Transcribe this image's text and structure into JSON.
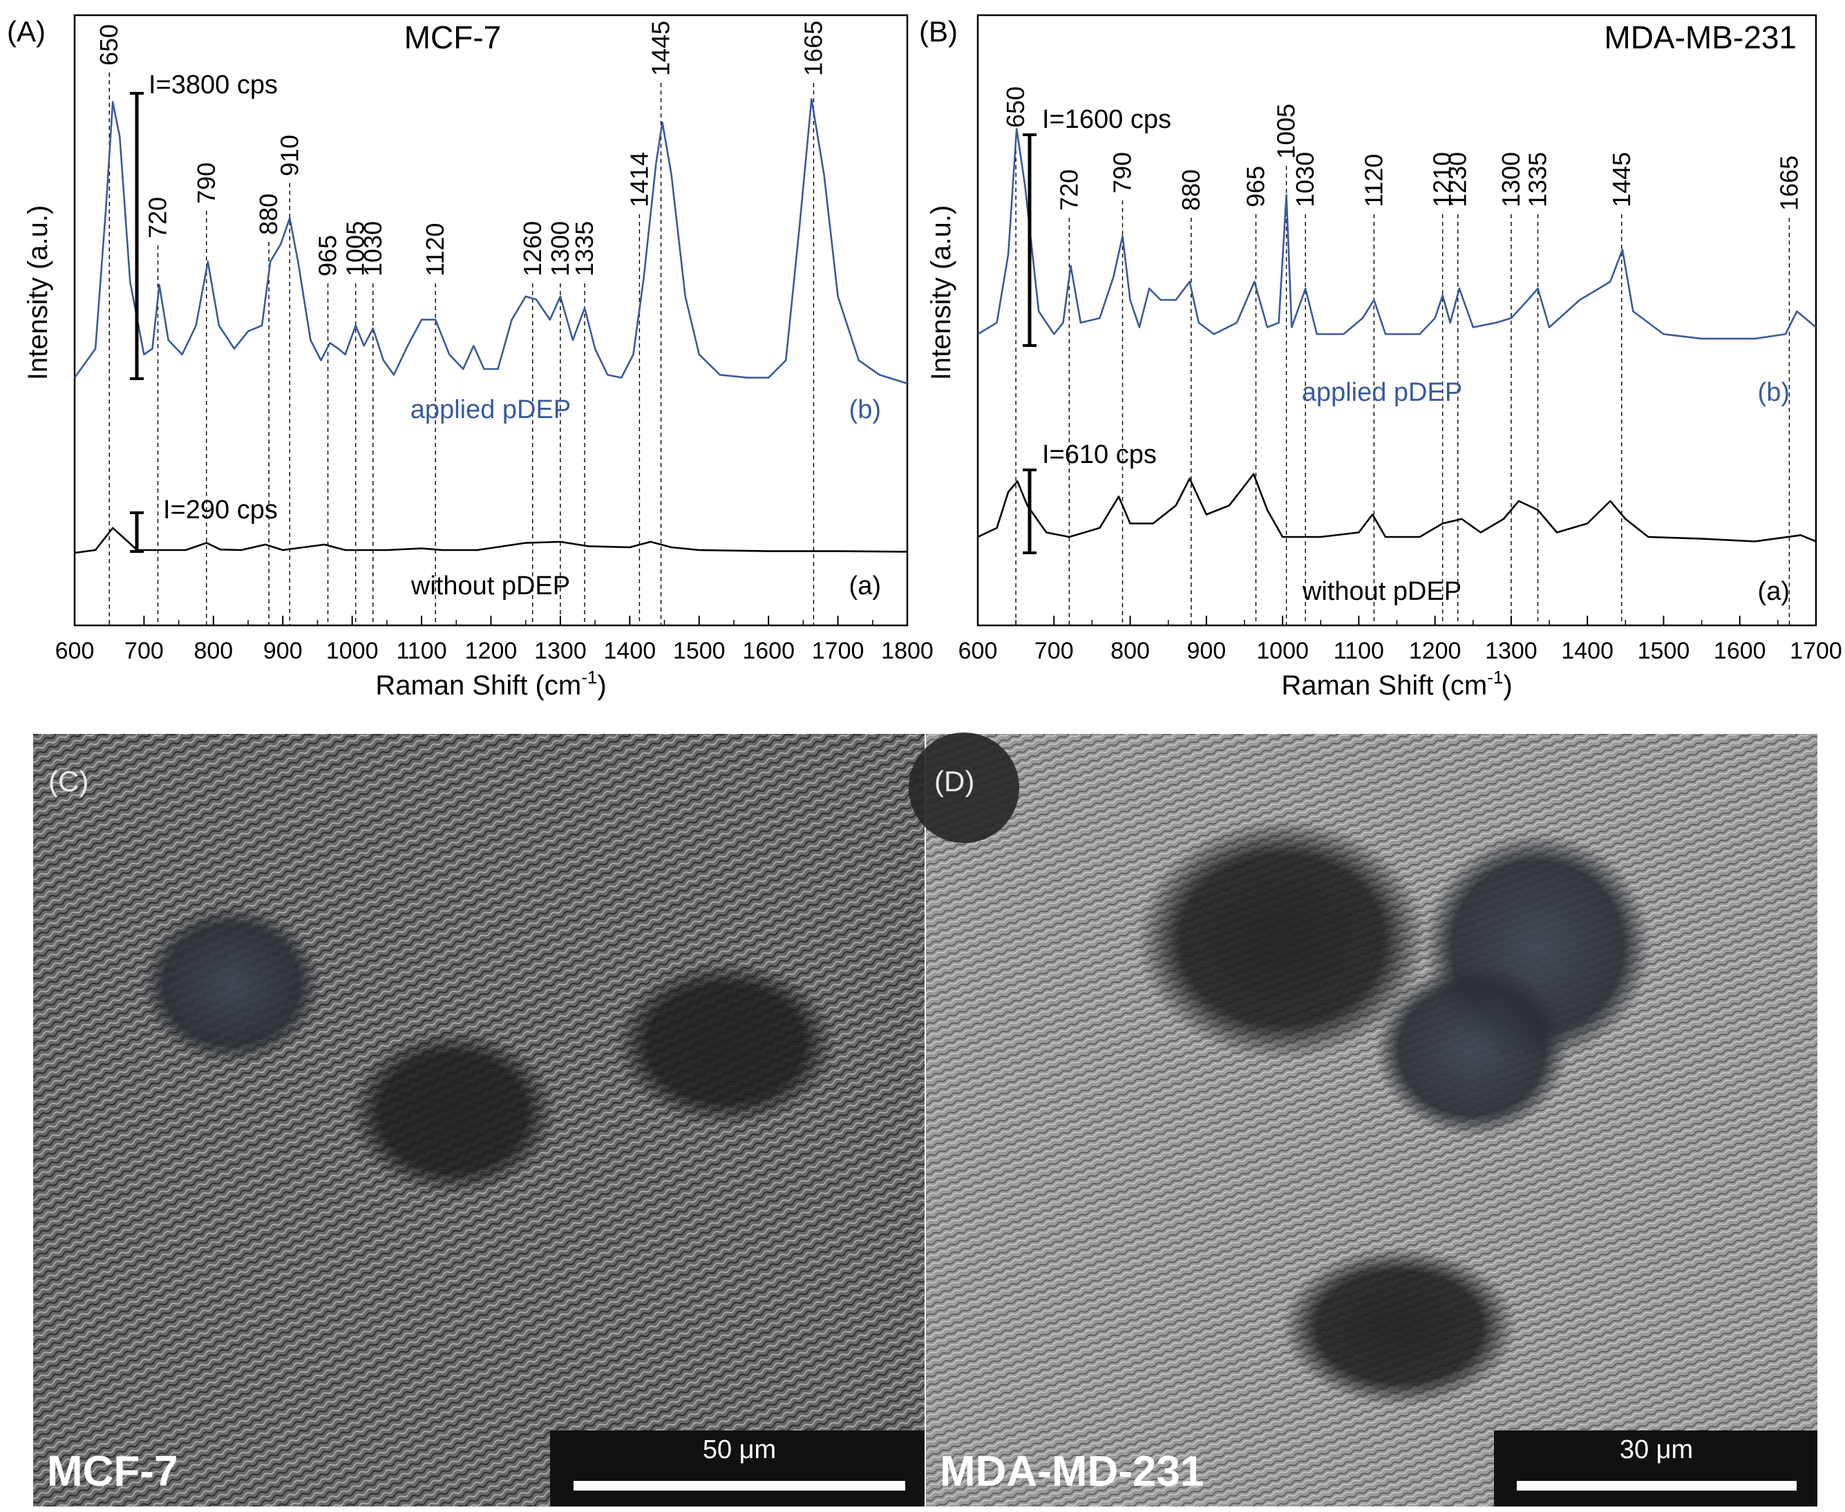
{
  "chart_data": [
    {
      "panel": "(A)",
      "type": "line",
      "title": "MCF-7",
      "xlabel": "Raman Shift (cm",
      "xlabel_sup": "-1",
      "xlabel_close": ")",
      "ylabel": "Intensity (a.u.)",
      "xlim": [
        600,
        1800
      ],
      "xticks": [
        600,
        700,
        800,
        900,
        1000,
        1100,
        1200,
        1300,
        1400,
        1500,
        1600,
        1700,
        1800
      ],
      "peak_labels": [
        "650",
        "720",
        "790",
        "880",
        "910",
        "965",
        "1005",
        "1030",
        "1120",
        "1260",
        "1300",
        "1335",
        "1414",
        "1445",
        "1665"
      ],
      "series": [
        {
          "name": "applied pDEP",
          "tag": "(b)",
          "color": "#3a5a9e",
          "scale_label": "I=3800 cps",
          "points": [
            [
              600,
              0.02
            ],
            [
              630,
              0.12
            ],
            [
              645,
              0.6
            ],
            [
              655,
              0.97
            ],
            [
              665,
              0.85
            ],
            [
              680,
              0.35
            ],
            [
              700,
              0.1
            ],
            [
              712,
              0.12
            ],
            [
              722,
              0.34
            ],
            [
              735,
              0.15
            ],
            [
              755,
              0.1
            ],
            [
              775,
              0.2
            ],
            [
              792,
              0.42
            ],
            [
              808,
              0.2
            ],
            [
              830,
              0.12
            ],
            [
              850,
              0.18
            ],
            [
              870,
              0.2
            ],
            [
              882,
              0.42
            ],
            [
              897,
              0.48
            ],
            [
              910,
              0.57
            ],
            [
              922,
              0.42
            ],
            [
              940,
              0.15
            ],
            [
              955,
              0.08
            ],
            [
              968,
              0.14
            ],
            [
              980,
              0.12
            ],
            [
              990,
              0.1
            ],
            [
              1005,
              0.2
            ],
            [
              1017,
              0.13
            ],
            [
              1030,
              0.19
            ],
            [
              1045,
              0.08
            ],
            [
              1060,
              0.03
            ],
            [
              1080,
              0.13
            ],
            [
              1100,
              0.22
            ],
            [
              1120,
              0.22
            ],
            [
              1140,
              0.1
            ],
            [
              1160,
              0.05
            ],
            [
              1175,
              0.13
            ],
            [
              1190,
              0.05
            ],
            [
              1210,
              0.05
            ],
            [
              1230,
              0.22
            ],
            [
              1250,
              0.3
            ],
            [
              1265,
              0.29
            ],
            [
              1285,
              0.22
            ],
            [
              1300,
              0.3
            ],
            [
              1318,
              0.15
            ],
            [
              1335,
              0.26
            ],
            [
              1350,
              0.12
            ],
            [
              1368,
              0.03
            ],
            [
              1388,
              0.02
            ],
            [
              1405,
              0.1
            ],
            [
              1420,
              0.36
            ],
            [
              1438,
              0.76
            ],
            [
              1447,
              0.9
            ],
            [
              1460,
              0.72
            ],
            [
              1480,
              0.3
            ],
            [
              1500,
              0.1
            ],
            [
              1530,
              0.03
            ],
            [
              1570,
              0.02
            ],
            [
              1600,
              0.02
            ],
            [
              1625,
              0.08
            ],
            [
              1645,
              0.55
            ],
            [
              1662,
              0.98
            ],
            [
              1680,
              0.72
            ],
            [
              1700,
              0.3
            ],
            [
              1730,
              0.08
            ],
            [
              1760,
              0.03
            ],
            [
              1800,
              0.0
            ]
          ]
        },
        {
          "name": "without pDEP",
          "tag": "(a)",
          "color": "#000000",
          "scale_label": "I=290 cps",
          "points": [
            [
              600,
              0.0
            ],
            [
              630,
              0.05
            ],
            [
              655,
              0.45
            ],
            [
              670,
              0.28
            ],
            [
              690,
              0.05
            ],
            [
              720,
              0.05
            ],
            [
              760,
              0.05
            ],
            [
              790,
              0.18
            ],
            [
              810,
              0.06
            ],
            [
              840,
              0.05
            ],
            [
              875,
              0.15
            ],
            [
              900,
              0.05
            ],
            [
              960,
              0.15
            ],
            [
              990,
              0.05
            ],
            [
              1050,
              0.05
            ],
            [
              1100,
              0.08
            ],
            [
              1130,
              0.05
            ],
            [
              1180,
              0.05
            ],
            [
              1250,
              0.18
            ],
            [
              1300,
              0.2
            ],
            [
              1340,
              0.12
            ],
            [
              1400,
              0.1
            ],
            [
              1430,
              0.2
            ],
            [
              1460,
              0.1
            ],
            [
              1500,
              0.05
            ],
            [
              1600,
              0.03
            ],
            [
              1700,
              0.03
            ],
            [
              1800,
              0.02
            ]
          ]
        }
      ],
      "scale_bar_um": "50 μm",
      "micrograph_label": "MCF-7",
      "micrograph_panel": "(C)"
    },
    {
      "panel": "(B)",
      "type": "line",
      "title": "MDA-MB-231",
      "xlabel": "Raman Shift (cm",
      "xlabel_sup": "-1",
      "xlabel_close": ")",
      "ylabel": "Intensity (a.u.)",
      "xlim": [
        600,
        1700
      ],
      "xticks": [
        600,
        700,
        800,
        900,
        1000,
        1100,
        1200,
        1300,
        1400,
        1500,
        1600,
        1700
      ],
      "peak_labels": [
        "650",
        "720",
        "790",
        "880",
        "965",
        "1005",
        "1030",
        "1120",
        "1210",
        "1230",
        "1300",
        "1335",
        "1445",
        "1665"
      ],
      "series": [
        {
          "name": "applied pDEP",
          "tag": "(b)",
          "color": "#3a5a9e",
          "scale_label": "I=1600 cps",
          "points": [
            [
              600,
              0.05
            ],
            [
              625,
              0.1
            ],
            [
              640,
              0.4
            ],
            [
              651,
              0.95
            ],
            [
              662,
              0.7
            ],
            [
              680,
              0.15
            ],
            [
              700,
              0.05
            ],
            [
              712,
              0.1
            ],
            [
              722,
              0.35
            ],
            [
              735,
              0.1
            ],
            [
              760,
              0.12
            ],
            [
              778,
              0.3
            ],
            [
              790,
              0.48
            ],
            [
              800,
              0.2
            ],
            [
              812,
              0.08
            ],
            [
              825,
              0.25
            ],
            [
              840,
              0.2
            ],
            [
              860,
              0.2
            ],
            [
              878,
              0.28
            ],
            [
              890,
              0.1
            ],
            [
              910,
              0.05
            ],
            [
              940,
              0.1
            ],
            [
              963,
              0.28
            ],
            [
              980,
              0.08
            ],
            [
              995,
              0.1
            ],
            [
              1005,
              0.66
            ],
            [
              1012,
              0.08
            ],
            [
              1030,
              0.25
            ],
            [
              1045,
              0.05
            ],
            [
              1080,
              0.05
            ],
            [
              1105,
              0.12
            ],
            [
              1120,
              0.2
            ],
            [
              1135,
              0.05
            ],
            [
              1180,
              0.05
            ],
            [
              1200,
              0.12
            ],
            [
              1210,
              0.22
            ],
            [
              1220,
              0.1
            ],
            [
              1232,
              0.25
            ],
            [
              1250,
              0.08
            ],
            [
              1280,
              0.1
            ],
            [
              1300,
              0.12
            ],
            [
              1322,
              0.2
            ],
            [
              1335,
              0.25
            ],
            [
              1350,
              0.08
            ],
            [
              1390,
              0.2
            ],
            [
              1430,
              0.28
            ],
            [
              1446,
              0.42
            ],
            [
              1460,
              0.15
            ],
            [
              1500,
              0.05
            ],
            [
              1550,
              0.03
            ],
            [
              1620,
              0.03
            ],
            [
              1660,
              0.05
            ],
            [
              1675,
              0.15
            ],
            [
              1700,
              0.08
            ]
          ]
        },
        {
          "name": "without pDEP",
          "tag": "(a)",
          "color": "#000000",
          "scale_label": "I=610 cps",
          "points": [
            [
              600,
              0.1
            ],
            [
              625,
              0.2
            ],
            [
              640,
              0.6
            ],
            [
              652,
              0.72
            ],
            [
              665,
              0.45
            ],
            [
              690,
              0.15
            ],
            [
              720,
              0.1
            ],
            [
              760,
              0.2
            ],
            [
              785,
              0.55
            ],
            [
              800,
              0.25
            ],
            [
              830,
              0.25
            ],
            [
              860,
              0.45
            ],
            [
              878,
              0.75
            ],
            [
              900,
              0.35
            ],
            [
              930,
              0.45
            ],
            [
              962,
              0.8
            ],
            [
              980,
              0.4
            ],
            [
              1000,
              0.1
            ],
            [
              1050,
              0.1
            ],
            [
              1100,
              0.15
            ],
            [
              1118,
              0.35
            ],
            [
              1135,
              0.1
            ],
            [
              1180,
              0.1
            ],
            [
              1210,
              0.25
            ],
            [
              1235,
              0.3
            ],
            [
              1260,
              0.15
            ],
            [
              1290,
              0.3
            ],
            [
              1310,
              0.5
            ],
            [
              1335,
              0.4
            ],
            [
              1360,
              0.15
            ],
            [
              1400,
              0.25
            ],
            [
              1430,
              0.5
            ],
            [
              1450,
              0.3
            ],
            [
              1480,
              0.1
            ],
            [
              1550,
              0.08
            ],
            [
              1620,
              0.05
            ],
            [
              1680,
              0.12
            ],
            [
              1700,
              0.05
            ]
          ]
        }
      ],
      "scale_bar_um": "30 μm",
      "micrograph_label": "MDA-MD-231",
      "micrograph_panel": "(D)"
    }
  ]
}
